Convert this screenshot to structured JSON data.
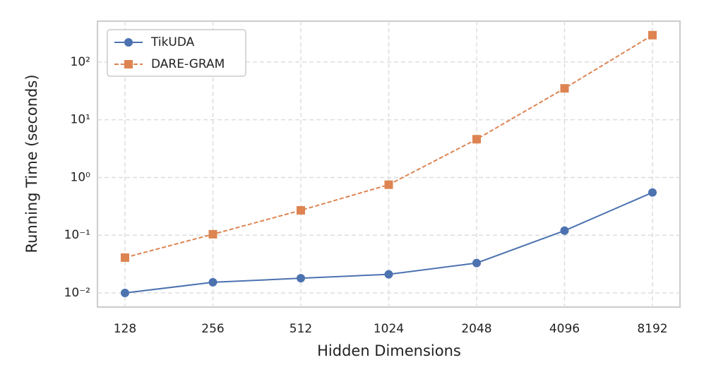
{
  "chart_data": {
    "type": "line",
    "xlabel": "Hidden Dimensions",
    "ylabel": "Running Time (seconds)",
    "categories": [
      "128",
      "256",
      "512",
      "1024",
      "2048",
      "4096",
      "8192"
    ],
    "series": [
      {
        "name": "TikUDA",
        "color": "#4c72b0",
        "linestyle": "solid",
        "marker": "circle",
        "values": [
          0.01,
          0.0153,
          0.018,
          0.021,
          0.033,
          0.12,
          0.55
        ]
      },
      {
        "name": "DARE-GRAM",
        "color": "#dd8452",
        "linestyle": "dashed",
        "marker": "square",
        "values": [
          0.041,
          0.104,
          0.27,
          0.75,
          4.6,
          35,
          292
        ]
      }
    ],
    "yscale": "log",
    "ylim": [
      0.0057,
      510
    ],
    "yticks": [
      {
        "value": 0.01,
        "label": "10⁻²"
      },
      {
        "value": 0.1,
        "label": "10⁻¹"
      },
      {
        "value": 1,
        "label": "10⁰"
      },
      {
        "value": 10,
        "label": "10¹"
      },
      {
        "value": 100,
        "label": "10²"
      }
    ],
    "grid": true,
    "legend": "upper left"
  }
}
